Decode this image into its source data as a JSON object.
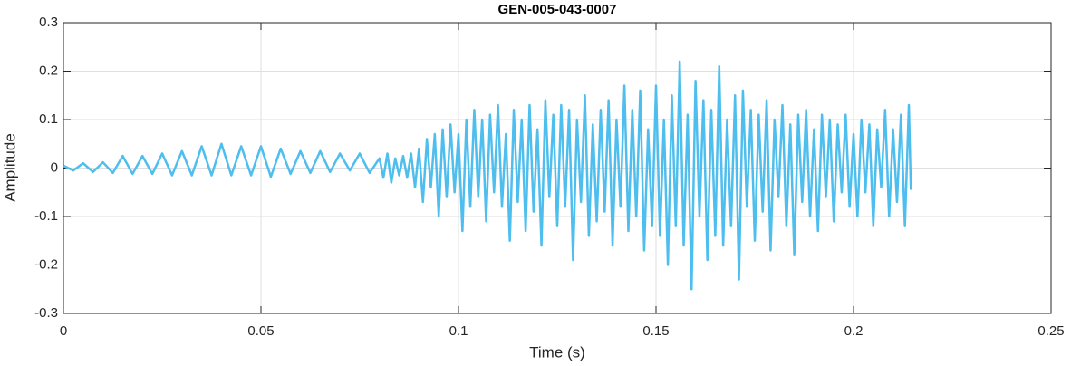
{
  "chart_data": {
    "type": "line",
    "title": "GEN-005-043-0007",
    "xlabel": "Time (s)",
    "ylabel": "Amplitude",
    "x": [
      0,
      0.0025,
      0.005,
      0.0075,
      0.01,
      0.0125,
      0.015,
      0.0175,
      0.02,
      0.0225,
      0.025,
      0.0275,
      0.03,
      0.0325,
      0.035,
      0.0375,
      0.04,
      0.0425,
      0.045,
      0.0475,
      0.05,
      0.0525,
      0.055,
      0.0575,
      0.06,
      0.0625,
      0.065,
      0.0675,
      0.07,
      0.0725,
      0.075,
      0.0775,
      0.08,
      0.081,
      0.082,
      0.083,
      0.084,
      0.085,
      0.086,
      0.087,
      0.088,
      0.089,
      0.09,
      0.091,
      0.092,
      0.093,
      0.094,
      0.095,
      0.096,
      0.097,
      0.098,
      0.099,
      0.1,
      0.101,
      0.102,
      0.103,
      0.104,
      0.105,
      0.106,
      0.107,
      0.108,
      0.109,
      0.11,
      0.111,
      0.112,
      0.113,
      0.114,
      0.115,
      0.116,
      0.117,
      0.118,
      0.119,
      0.12,
      0.121,
      0.122,
      0.123,
      0.124,
      0.125,
      0.126,
      0.127,
      0.128,
      0.129,
      0.13,
      0.131,
      0.132,
      0.133,
      0.134,
      0.135,
      0.136,
      0.137,
      0.138,
      0.139,
      0.14,
      0.141,
      0.142,
      0.143,
      0.144,
      0.145,
      0.146,
      0.147,
      0.148,
      0.149,
      0.15,
      0.151,
      0.152,
      0.153,
      0.154,
      0.155,
      0.156,
      0.157,
      0.158,
      0.159,
      0.16,
      0.161,
      0.162,
      0.163,
      0.164,
      0.165,
      0.166,
      0.167,
      0.168,
      0.169,
      0.17,
      0.171,
      0.172,
      0.173,
      0.174,
      0.175,
      0.176,
      0.177,
      0.178,
      0.179,
      0.18,
      0.181,
      0.182,
      0.183,
      0.184,
      0.185,
      0.186,
      0.187,
      0.188,
      0.189,
      0.19,
      0.191,
      0.192,
      0.193,
      0.194,
      0.195,
      0.196,
      0.197,
      0.198,
      0.199,
      0.2,
      0.201,
      0.202,
      0.203,
      0.204,
      0.205,
      0.206,
      0.207,
      0.208,
      0.209,
      0.21,
      0.211,
      0.212,
      0.213,
      0.214,
      0.2145
    ],
    "values": [
      0.005,
      -0.005,
      0.01,
      -0.008,
      0.012,
      -0.01,
      0.025,
      -0.012,
      0.025,
      -0.012,
      0.03,
      -0.015,
      0.035,
      -0.015,
      0.045,
      -0.015,
      0.05,
      -0.015,
      0.045,
      -0.015,
      0.045,
      -0.018,
      0.04,
      -0.012,
      0.035,
      -0.01,
      0.035,
      -0.008,
      0.03,
      -0.005,
      0.03,
      -0.01,
      0.02,
      -0.02,
      0.03,
      -0.03,
      0.02,
      -0.015,
      0.025,
      -0.02,
      0.03,
      -0.04,
      0.04,
      -0.07,
      0.06,
      -0.04,
      0.07,
      -0.1,
      0.08,
      -0.06,
      0.09,
      -0.05,
      0.07,
      -0.13,
      0.1,
      -0.08,
      0.12,
      -0.06,
      0.1,
      -0.11,
      0.11,
      -0.05,
      0.13,
      -0.08,
      0.07,
      -0.15,
      0.12,
      -0.07,
      0.1,
      -0.13,
      0.13,
      -0.09,
      0.08,
      -0.16,
      0.14,
      -0.06,
      0.11,
      -0.12,
      0.13,
      -0.08,
      0.12,
      -0.19,
      0.1,
      -0.07,
      0.15,
      -0.14,
      0.09,
      -0.11,
      0.12,
      -0.09,
      0.14,
      -0.16,
      0.1,
      -0.08,
      0.17,
      -0.13,
      0.12,
      -0.1,
      0.16,
      -0.17,
      0.08,
      -0.12,
      0.17,
      -0.14,
      0.1,
      -0.2,
      0.15,
      -0.12,
      0.22,
      -0.16,
      0.11,
      -0.25,
      0.18,
      -0.1,
      0.14,
      -0.19,
      0.12,
      -0.14,
      0.21,
      -0.16,
      0.1,
      -0.12,
      0.15,
      -0.23,
      0.16,
      -0.08,
      0.12,
      -0.15,
      0.11,
      -0.09,
      0.14,
      -0.17,
      0.1,
      -0.06,
      0.13,
      -0.12,
      0.09,
      -0.18,
      0.11,
      -0.07,
      0.12,
      -0.1,
      0.08,
      -0.13,
      0.11,
      -0.06,
      0.1,
      -0.11,
      0.09,
      -0.05,
      0.11,
      -0.08,
      0.07,
      -0.1,
      0.1,
      -0.05,
      0.09,
      -0.12,
      0.08,
      -0.04,
      0.12,
      -0.1,
      0.08,
      -0.07,
      0.11,
      -0.12,
      0.13,
      -0.045
    ],
    "color": "#4dbeee",
    "xlim": [
      0,
      0.25
    ],
    "xticks": [
      0,
      0.05,
      0.1,
      0.15,
      0.2,
      0.25
    ],
    "ylim": [
      -0.3,
      0.3
    ],
    "yticks": [
      -0.3,
      -0.2,
      -0.1,
      0,
      0.1,
      0.2,
      0.3
    ],
    "grid": true
  }
}
